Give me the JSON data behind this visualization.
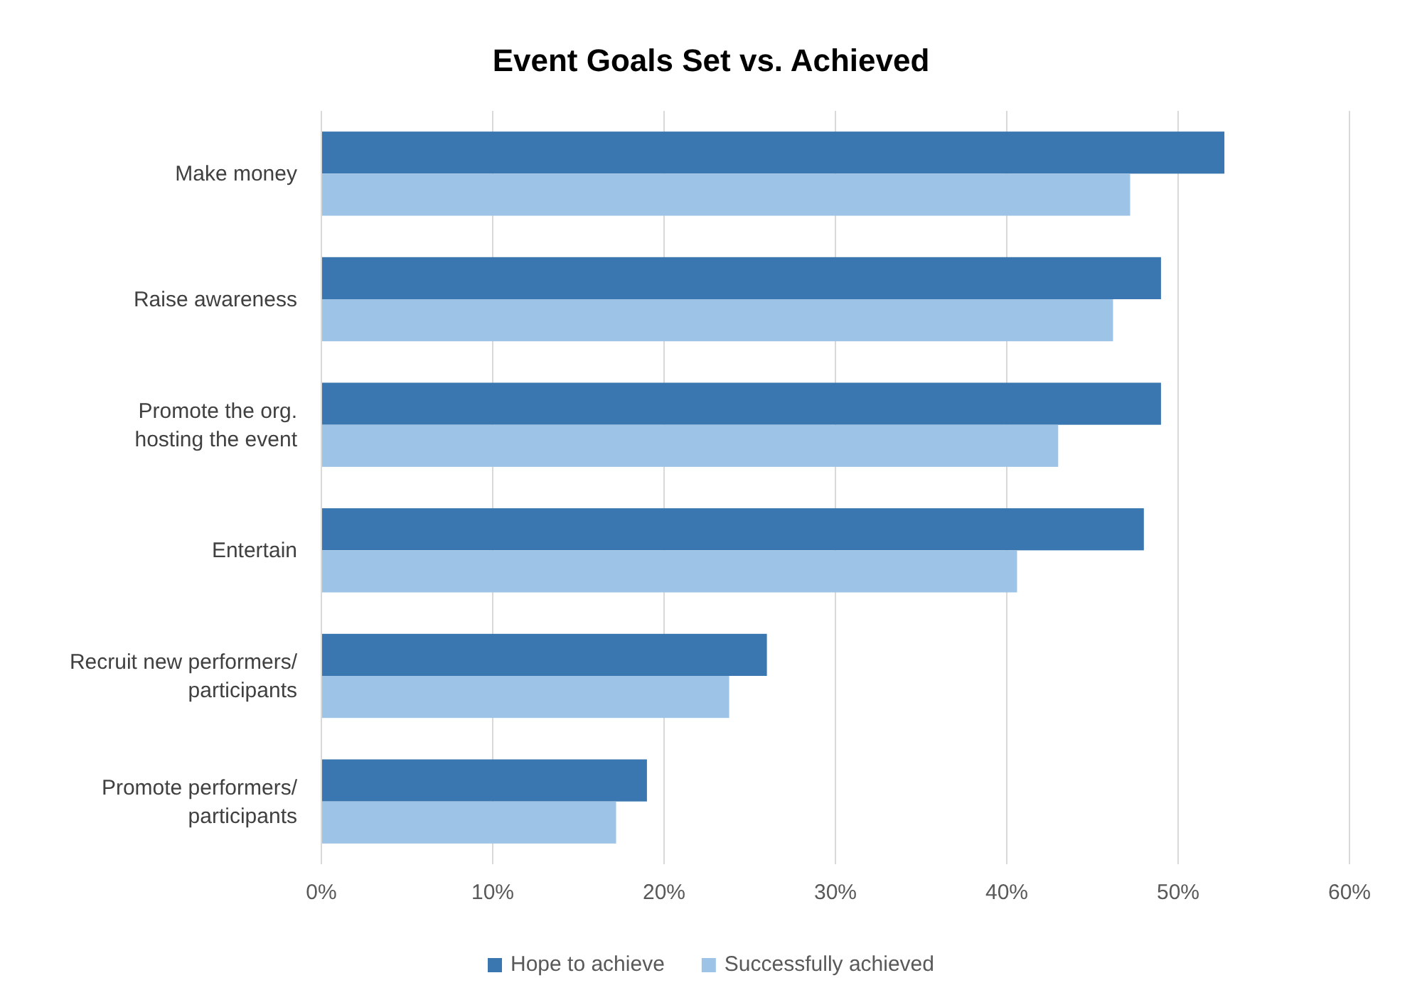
{
  "chart_data": {
    "type": "bar",
    "orientation": "horizontal",
    "title": "Event Goals Set vs. Achieved",
    "categories": [
      "Make money",
      "Raise awareness",
      "Promote the org.\nhosting the event",
      "Entertain",
      "Recruit new performers/\nparticipants",
      "Promote performers/\nparticipants"
    ],
    "series": [
      {
        "name": "Hope to achieve",
        "color": "#3a76b0",
        "values": [
          52.7,
          49.0,
          49.0,
          48.0,
          26.0,
          19.0
        ]
      },
      {
        "name": "Successfully achieved",
        "color": "#9dc3e6",
        "values": [
          47.2,
          46.2,
          43.0,
          40.6,
          23.8,
          17.2
        ]
      }
    ],
    "xlim": [
      0,
      60
    ],
    "xticks": [
      {
        "value": 0,
        "label": "0%"
      },
      {
        "value": 10,
        "label": "10%"
      },
      {
        "value": 20,
        "label": "20%"
      },
      {
        "value": 30,
        "label": "30%"
      },
      {
        "value": 40,
        "label": "40%"
      },
      {
        "value": 50,
        "label": "50%"
      },
      {
        "value": 60,
        "label": "60%"
      }
    ],
    "grid": "x",
    "legend": "bottom"
  }
}
